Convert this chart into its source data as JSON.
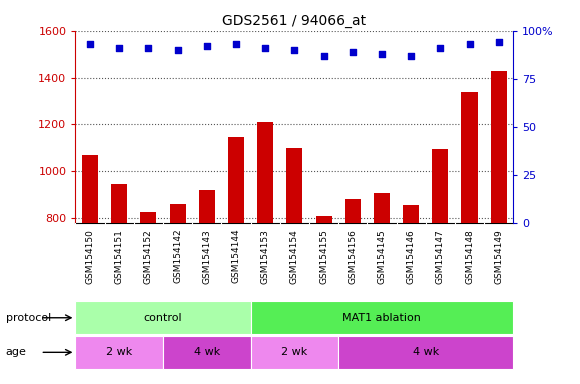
{
  "title": "GDS2561 / 94066_at",
  "samples": [
    "GSM154150",
    "GSM154151",
    "GSM154152",
    "GSM154142",
    "GSM154143",
    "GSM154144",
    "GSM154153",
    "GSM154154",
    "GSM154155",
    "GSM154156",
    "GSM154145",
    "GSM154146",
    "GSM154147",
    "GSM154148",
    "GSM154149"
  ],
  "counts": [
    1070,
    947,
    825,
    860,
    920,
    1145,
    1210,
    1100,
    810,
    880,
    905,
    855,
    1095,
    1340,
    1430
  ],
  "percentile_ranks": [
    93,
    91,
    91,
    90,
    92,
    93,
    91,
    90,
    87,
    89,
    88,
    87,
    91,
    93,
    94
  ],
  "ylim_left": [
    780,
    1600
  ],
  "ylim_right": [
    0,
    100
  ],
  "yticks_left": [
    800,
    1000,
    1200,
    1400,
    1600
  ],
  "yticks_right": [
    0,
    25,
    50,
    75,
    100
  ],
  "bar_color": "#cc0000",
  "dot_color": "#0000cc",
  "grid_color": "#555555",
  "protocol_groups": [
    {
      "label": "control",
      "start": 0,
      "end": 6,
      "color": "#aaffaa"
    },
    {
      "label": "MAT1 ablation",
      "start": 6,
      "end": 15,
      "color": "#55ee55"
    }
  ],
  "age_groups": [
    {
      "label": "2 wk",
      "start": 0,
      "end": 3,
      "color": "#ee88ee"
    },
    {
      "label": "4 wk",
      "start": 3,
      "end": 6,
      "color": "#cc44cc"
    },
    {
      "label": "2 wk",
      "start": 6,
      "end": 9,
      "color": "#ee88ee"
    },
    {
      "label": "4 wk",
      "start": 9,
      "end": 15,
      "color": "#cc44cc"
    }
  ],
  "legend_count_color": "#cc0000",
  "legend_dot_color": "#0000cc",
  "tick_bg_color": "#cccccc",
  "bar_width": 0.55
}
